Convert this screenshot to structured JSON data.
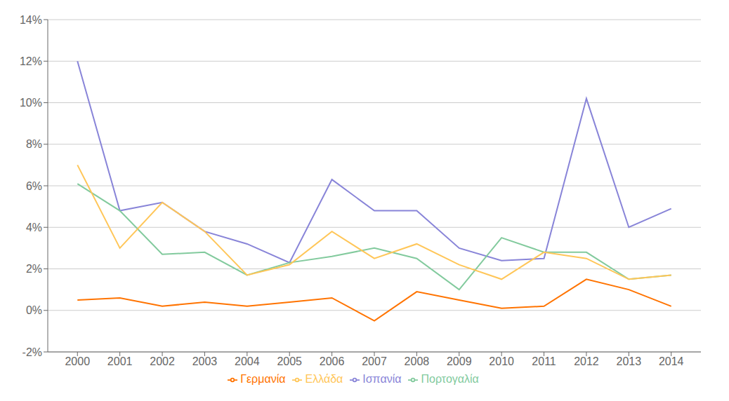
{
  "chart_data": {
    "type": "line",
    "x": [
      2000,
      2001,
      2002,
      2003,
      2004,
      2005,
      2006,
      2007,
      2008,
      2009,
      2010,
      2011,
      2012,
      2013,
      2014
    ],
    "series": [
      {
        "name": "Ισπανία",
        "color": "#8884d8",
        "values": [
          12.0,
          4.8,
          5.2,
          3.8,
          3.2,
          2.3,
          6.3,
          4.8,
          4.8,
          3.0,
          2.4,
          2.5,
          10.2,
          4.0,
          4.9
        ]
      },
      {
        "name": "Πορτογαλία",
        "color": "#82ca9d",
        "values": [
          6.1,
          4.8,
          2.7,
          2.8,
          1.7,
          2.3,
          2.6,
          3.0,
          2.5,
          1.0,
          3.5,
          2.8,
          2.8,
          1.5,
          1.7
        ]
      },
      {
        "name": "Ελλάδα",
        "color": "#ffc658",
        "values": [
          7.0,
          3.0,
          5.2,
          3.8,
          1.7,
          2.2,
          3.8,
          2.5,
          3.2,
          2.2,
          1.5,
          2.8,
          2.5,
          1.5,
          1.7
        ]
      },
      {
        "name": "Γερμανία",
        "color": "#ff7300",
        "values": [
          0.5,
          0.6,
          0.2,
          0.4,
          0.2,
          0.4,
          0.6,
          -0.5,
          0.9,
          0.5,
          0.1,
          0.2,
          1.5,
          1.0,
          0.2
        ]
      }
    ],
    "xlim": [
      1999.3,
      2014.7
    ],
    "xticks": [
      2000,
      2001,
      2002,
      2003,
      2004,
      2005,
      2006,
      2007,
      2008,
      2009,
      2010,
      2011,
      2012,
      2013,
      2014
    ],
    "ylim": [
      -2,
      14
    ],
    "yticks": [
      {
        "value": -2,
        "label": "-2%"
      },
      {
        "value": 0,
        "label": "0%"
      },
      {
        "value": 2,
        "label": "2%"
      },
      {
        "value": 4,
        "label": "4%"
      },
      {
        "value": 6,
        "label": "6%"
      },
      {
        "value": 8,
        "label": "8%"
      },
      {
        "value": 10,
        "label": "10%"
      },
      {
        "value": 12,
        "label": "12%"
      },
      {
        "value": 14,
        "label": "14%"
      }
    ],
    "grid": true,
    "legend": "bottom"
  }
}
